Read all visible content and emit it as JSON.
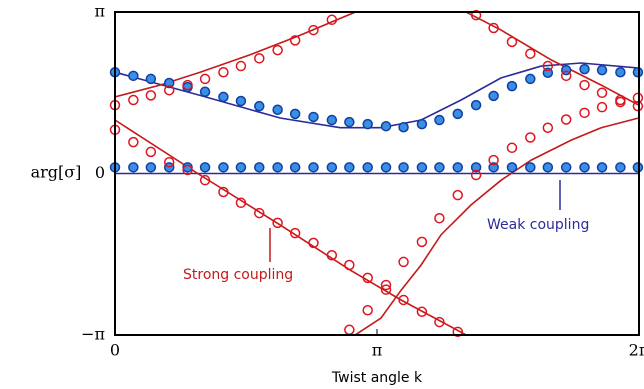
{
  "chart_data": {
    "type": "line",
    "xlabel": "Twist angle k",
    "ylabel": "arg[σ]",
    "xlim": [
      0,
      6.2832
    ],
    "ylim": [
      -3.1416,
      3.1416
    ],
    "xticks": [
      0,
      {
        "value": 3.1416,
        "label": "π"
      },
      {
        "value": 6.2832,
        "label": "2π"
      }
    ],
    "yticks": [
      {
        "value": -3.1416,
        "label": "−π"
      },
      0,
      {
        "value": 3.1416,
        "label": "π"
      }
    ],
    "annotations": [
      {
        "text": "Weak coupling",
        "color": "#2b2b9b"
      },
      {
        "text": "Strong coupling",
        "color": "#c41a1a"
      }
    ],
    "series": [
      {
        "style": "line",
        "color": "#2b2b9b",
        "x": [
          0,
          6.28
        ],
        "values": [
          0,
          0
        ]
      },
      {
        "style": "line",
        "color": "#2b2b9b",
        "x": [
          0,
          1.02,
          1.98,
          2.7,
          3.19,
          3.67,
          4.15,
          4.63,
          5.11,
          5.59,
          6.28
        ],
        "values": [
          1.97,
          1.52,
          1.08,
          0.89,
          0.89,
          1.04,
          1.43,
          1.86,
          2.09,
          2.15,
          2.05
        ]
      },
      {
        "style": "line",
        "color": "#c41a1a",
        "x": [
          0,
          0.54,
          1.02,
          1.62,
          2.22,
          2.88,
          null,
          2.88,
          3.19,
          3.43,
          3.67,
          3.91,
          4.27,
          4.63,
          4.99,
          5.47,
          5.83,
          6.28
        ],
        "values": [
          1.49,
          1.72,
          1.97,
          2.31,
          2.69,
          3.14,
          null,
          -3.14,
          -2.81,
          -2.27,
          -1.78,
          -1.19,
          -0.61,
          -0.13,
          0.26,
          0.65,
          0.89,
          1.08
        ]
      },
      {
        "style": "line",
        "color": "#c41a1a",
        "x": [
          0,
          1.02,
          1.98,
          2.82,
          3.43,
          4.21,
          null,
          4.21,
          4.63,
          5.23,
          5.83,
          6.28
        ],
        "values": [
          1.04,
          -0.03,
          -1.0,
          -1.88,
          -2.46,
          -3.14,
          null,
          3.14,
          2.79,
          2.21,
          1.72,
          1.33
        ]
      },
      {
        "style": "markers",
        "color": "#1040a0",
        "fill": "#3a8ee6",
        "x": [
          0,
          0.22,
          0.43,
          0.65,
          0.87,
          1.08,
          1.3,
          1.51,
          1.73,
          1.95,
          2.16,
          2.38,
          2.6,
          2.81,
          3.03,
          3.25,
          3.46,
          3.68,
          3.89,
          4.11,
          4.33,
          4.54,
          4.76,
          4.98,
          5.19,
          5.41,
          5.63,
          5.84,
          6.06,
          6.27
        ],
        "values": [
          0.12,
          0.12,
          0.12,
          0.12,
          0.12,
          0.12,
          0.12,
          0.12,
          0.12,
          0.12,
          0.12,
          0.12,
          0.12,
          0.12,
          0.12,
          0.12,
          0.12,
          0.12,
          0.12,
          0.12,
          0.12,
          0.12,
          0.12,
          0.12,
          0.12,
          0.12,
          0.12,
          0.12,
          0.12,
          0.12
        ]
      },
      {
        "style": "markers",
        "color": "#1040a0",
        "fill": "#3a8ee6",
        "x": [
          0,
          0.22,
          0.43,
          0.65,
          0.87,
          1.08,
          1.3,
          1.51,
          1.73,
          1.95,
          2.16,
          2.38,
          2.6,
          2.81,
          3.03,
          3.25,
          3.46,
          3.68,
          3.89,
          4.11,
          4.33,
          4.54,
          4.76,
          4.98,
          5.19,
          5.41,
          5.63,
          5.84,
          6.06,
          6.27
        ],
        "values": [
          1.97,
          1.9,
          1.84,
          1.76,
          1.68,
          1.59,
          1.49,
          1.41,
          1.31,
          1.24,
          1.16,
          1.1,
          1.04,
          1.0,
          0.96,
          0.92,
          0.9,
          0.96,
          1.04,
          1.16,
          1.33,
          1.51,
          1.7,
          1.84,
          1.96,
          2.01,
          2.03,
          2.01,
          1.97,
          1.97
        ]
      },
      {
        "style": "markers",
        "color": "#e0141e",
        "fill": "none",
        "x": [
          0,
          0.22,
          0.43,
          0.65,
          0.87,
          1.08,
          1.3,
          1.51,
          1.73,
          1.95,
          2.16,
          2.38,
          2.6,
          2.81,
          3.03,
          3.25,
          3.46,
          3.68,
          3.89,
          4.11,
          4.33,
          4.54,
          4.76,
          4.98,
          5.19,
          5.41,
          5.63,
          5.84,
          6.06,
          6.27
        ],
        "values": [
          1.33,
          1.43,
          1.52,
          1.62,
          1.72,
          1.84,
          1.97,
          2.09,
          2.24,
          2.4,
          2.59,
          2.79,
          2.99,
          -3.04,
          -2.66,
          -2.17,
          -1.72,
          -1.33,
          -0.87,
          -0.42,
          -0.03,
          0.26,
          0.5,
          0.7,
          0.89,
          1.05,
          1.18,
          1.29,
          1.39,
          1.47
        ]
      },
      {
        "style": "markers",
        "color": "#e0141e",
        "fill": "none",
        "x": [
          0,
          0.22,
          0.43,
          0.65,
          0.87,
          1.08,
          1.3,
          1.51,
          1.73,
          1.95,
          2.16,
          2.38,
          2.6,
          2.81,
          3.03,
          3.25,
          3.46,
          3.68,
          3.89,
          4.11,
          4.33,
          4.54,
          4.76,
          4.98,
          5.19,
          5.41,
          5.63,
          5.84,
          6.06,
          6.27
        ],
        "values": [
          0.85,
          0.61,
          0.42,
          0.22,
          0.07,
          -0.13,
          -0.36,
          -0.57,
          -0.77,
          -0.96,
          -1.16,
          -1.35,
          -1.59,
          -1.78,
          -2.03,
          -2.26,
          -2.46,
          -2.69,
          -2.89,
          -3.08,
          3.08,
          2.83,
          2.56,
          2.33,
          2.09,
          1.9,
          1.72,
          1.57,
          1.43,
          1.31
        ]
      }
    ]
  }
}
